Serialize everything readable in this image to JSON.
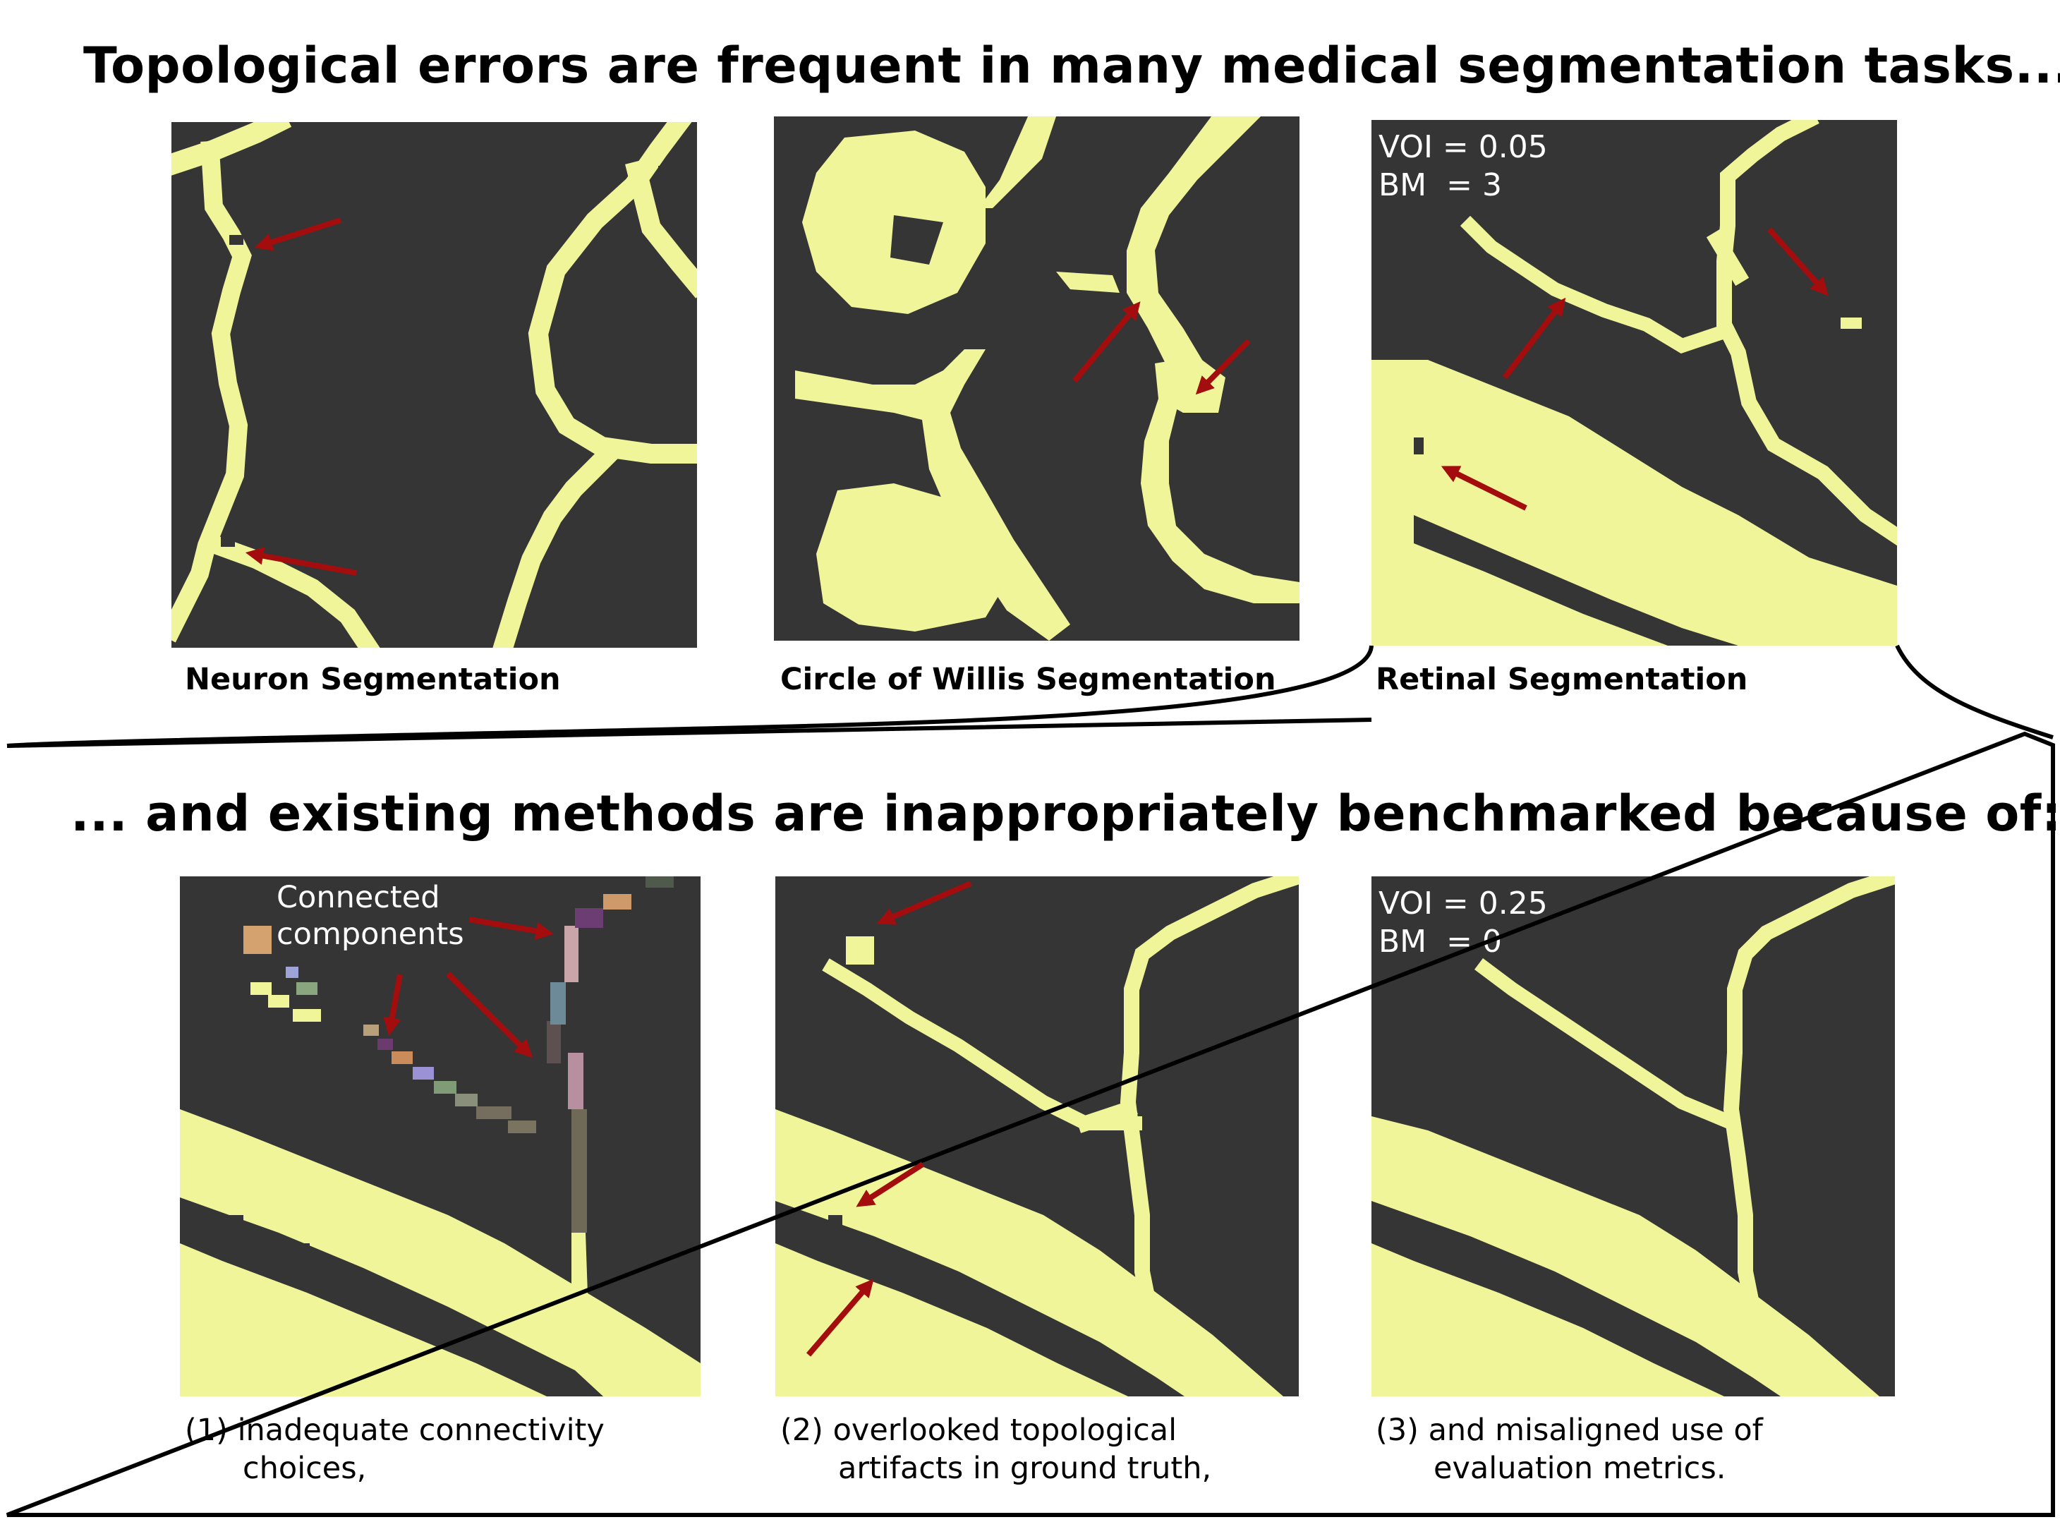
{
  "header": {
    "title": "Topological errors are frequent in many medical segmentation tasks..."
  },
  "panels_top": [
    {
      "label": "Neuron Segmentation"
    },
    {
      "label": "Circle of Willis Segmentation"
    },
    {
      "label": "Retinal Segmentation",
      "metrics": [
        "VOI = 0.05",
        "BM  = 3"
      ]
    }
  ],
  "section2": {
    "title": "... and existing methods are inappropriately benchmarked because of:"
  },
  "panels_bottom": [
    {
      "annotation": [
        "Connected",
        "components"
      ],
      "caption": [
        "(1) inadequate connectivity",
        "      choices,"
      ]
    },
    {
      "caption": [
        "(2) overlooked topological",
        "      artifacts in ground truth,"
      ]
    },
    {
      "metrics": [
        "VOI = 0.25",
        "BM  = 0"
      ],
      "caption": [
        "(3) and misaligned use of",
        "      evaluation metrics."
      ]
    }
  ],
  "colors": {
    "background": "#353535",
    "vessel": "#f1f59a",
    "arrow": "#a30d0d",
    "outline": "#000000"
  }
}
